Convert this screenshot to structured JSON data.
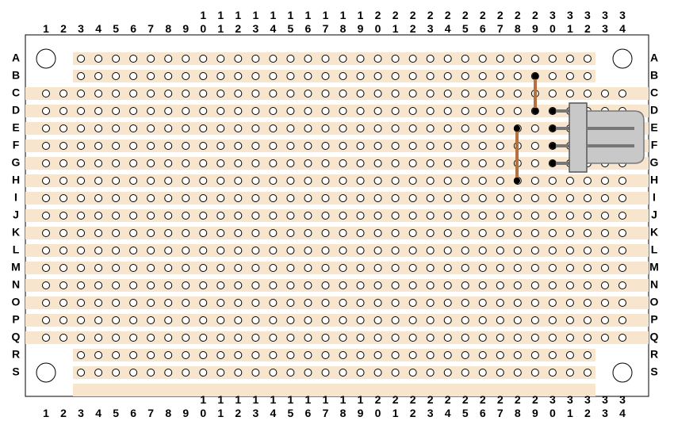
{
  "columns": [
    "1",
    "2",
    "3",
    "4",
    "5",
    "6",
    "7",
    "8",
    "9",
    "10",
    "11",
    "12",
    "13",
    "14",
    "15",
    "16",
    "17",
    "18",
    "19",
    "20",
    "21",
    "22",
    "23",
    "24",
    "25",
    "26",
    "27",
    "28",
    "29",
    "30",
    "31",
    "32",
    "33",
    "34"
  ],
  "rows": [
    "A",
    "B",
    "C",
    "D",
    "E",
    "F",
    "G",
    "H",
    "I",
    "J",
    "K",
    "L",
    "M",
    "N",
    "O",
    "P",
    "Q",
    "R",
    "S"
  ]
}
